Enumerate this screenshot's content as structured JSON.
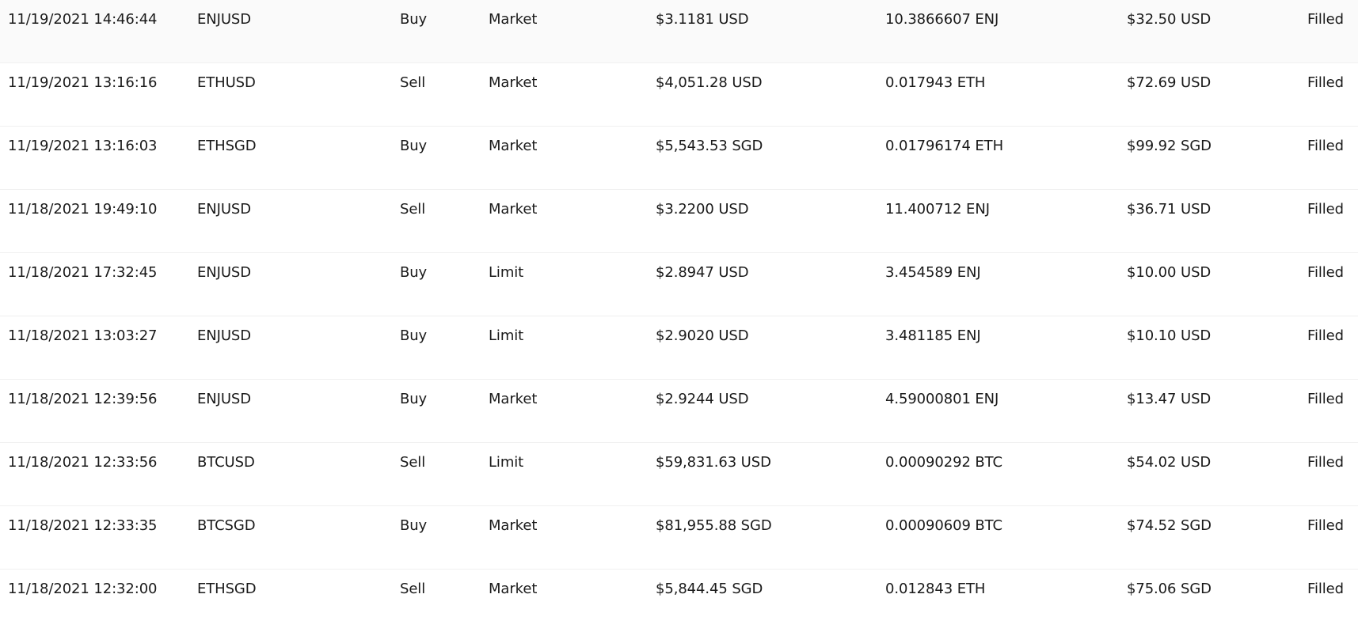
{
  "orders": [
    {
      "date": "11/19/2021 14:46:44",
      "pair": "ENJUSD",
      "side": "Buy",
      "type": "Market",
      "price": "$3.1181 USD",
      "amount": "10.3866607 ENJ",
      "total": "$32.50 USD",
      "status": "Filled"
    },
    {
      "date": "11/19/2021 13:16:16",
      "pair": "ETHUSD",
      "side": "Sell",
      "type": "Market",
      "price": "$4,051.28 USD",
      "amount": "0.017943 ETH",
      "total": "$72.69 USD",
      "status": "Filled"
    },
    {
      "date": "11/19/2021 13:16:03",
      "pair": "ETHSGD",
      "side": "Buy",
      "type": "Market",
      "price": "$5,543.53 SGD",
      "amount": "0.01796174 ETH",
      "total": "$99.92 SGD",
      "status": "Filled"
    },
    {
      "date": "11/18/2021 19:49:10",
      "pair": "ENJUSD",
      "side": "Sell",
      "type": "Market",
      "price": "$3.2200 USD",
      "amount": "11.400712 ENJ",
      "total": "$36.71 USD",
      "status": "Filled"
    },
    {
      "date": "11/18/2021 17:32:45",
      "pair": "ENJUSD",
      "side": "Buy",
      "type": "Limit",
      "price": "$2.8947 USD",
      "amount": "3.454589 ENJ",
      "total": "$10.00 USD",
      "status": "Filled"
    },
    {
      "date": "11/18/2021 13:03:27",
      "pair": "ENJUSD",
      "side": "Buy",
      "type": "Limit",
      "price": "$2.9020 USD",
      "amount": "3.481185 ENJ",
      "total": "$10.10 USD",
      "status": "Filled"
    },
    {
      "date": "11/18/2021 12:39:56",
      "pair": "ENJUSD",
      "side": "Buy",
      "type": "Market",
      "price": "$2.9244 USD",
      "amount": "4.59000801 ENJ",
      "total": "$13.47 USD",
      "status": "Filled"
    },
    {
      "date": "11/18/2021 12:33:56",
      "pair": "BTCUSD",
      "side": "Sell",
      "type": "Limit",
      "price": "$59,831.63 USD",
      "amount": "0.00090292 BTC",
      "total": "$54.02 USD",
      "status": "Filled"
    },
    {
      "date": "11/18/2021 12:33:35",
      "pair": "BTCSGD",
      "side": "Buy",
      "type": "Market",
      "price": "$81,955.88 SGD",
      "amount": "0.00090609 BTC",
      "total": "$74.52 SGD",
      "status": "Filled"
    },
    {
      "date": "11/18/2021 12:32:00",
      "pair": "ETHSGD",
      "side": "Sell",
      "type": "Market",
      "price": "$5,844.45 SGD",
      "amount": "0.012843 ETH",
      "total": "$75.06 SGD",
      "status": "Filled"
    }
  ]
}
